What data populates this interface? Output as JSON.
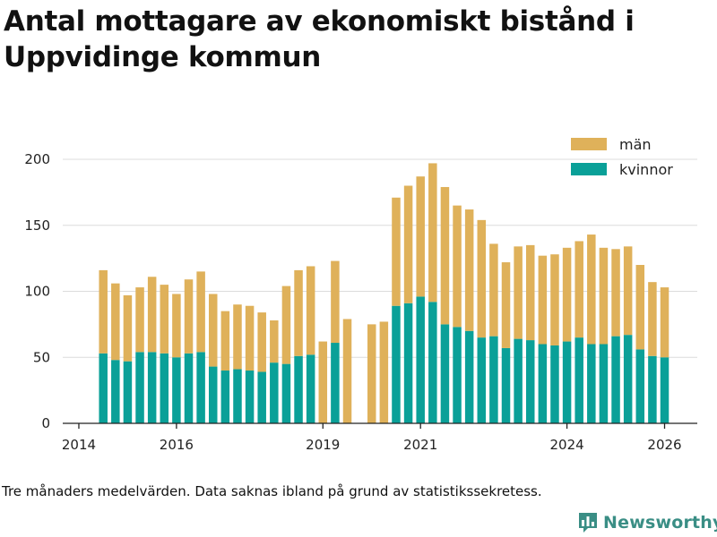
{
  "title": "Antal mottagare av ekonomiskt bistånd i Uppvidinge kommun",
  "note": "Tre månaders medelvärden. Data saknas ibland på grund av statistikssekretess.",
  "brand": "Newsworthy",
  "colors": {
    "man": "#dfb15a",
    "kvinnor": "#0aa098",
    "grid": "#dcdcdc",
    "axis": "#222222",
    "brand": "#3a8e85"
  },
  "chart_data": {
    "type": "bar",
    "stacked": true,
    "title": "Antal mottagare av ekonomiskt bistånd i Uppvidinge kommun",
    "xlabel": "",
    "ylabel": "",
    "ylim": [
      0,
      220
    ],
    "yticks": [
      0,
      50,
      100,
      150,
      200
    ],
    "xlim": [
      2013.67,
      2026.67
    ],
    "xticks": [
      2014,
      2016,
      2019,
      2021,
      2024,
      2026
    ],
    "x": [
      2014.5,
      2014.75,
      2015.0,
      2015.25,
      2015.5,
      2015.75,
      2016.0,
      2016.25,
      2016.5,
      2016.75,
      2017.0,
      2017.25,
      2017.5,
      2017.75,
      2018.0,
      2018.25,
      2018.5,
      2018.75,
      2019.0,
      2019.25,
      2019.5,
      2019.75,
      2020.0,
      2020.25,
      2020.5,
      2020.75,
      2021.0,
      2021.25,
      2021.5,
      2021.75,
      2022.0,
      2022.25,
      2022.5,
      2022.75,
      2023.0,
      2023.25,
      2023.5,
      2023.75,
      2024.0,
      2024.25,
      2024.5,
      2024.75,
      2025.0,
      2025.25,
      2025.5,
      2025.75,
      2026.0
    ],
    "series": [
      {
        "name": "kvinnor",
        "values": [
          53,
          48,
          47,
          54,
          54,
          53,
          50,
          53,
          54,
          43,
          40,
          41,
          40,
          39,
          46,
          45,
          51,
          52,
          0,
          61,
          null,
          0,
          0,
          0,
          89,
          91,
          96,
          92,
          75,
          73,
          70,
          65,
          66,
          57,
          64,
          63,
          60,
          59,
          62,
          65,
          60,
          60,
          66,
          67,
          56,
          51,
          50
        ]
      },
      {
        "name": "män",
        "values": [
          63,
          58,
          50,
          49,
          57,
          52,
          48,
          56,
          61,
          55,
          45,
          49,
          49,
          45,
          32,
          59,
          65,
          67,
          62,
          62,
          79,
          null,
          75,
          77,
          82,
          89,
          91,
          105,
          104,
          92,
          92,
          89,
          70,
          65,
          70,
          72,
          67,
          69,
          71,
          73,
          83,
          73,
          66,
          67,
          64,
          56,
          53
        ]
      }
    ],
    "legend": {
      "position": "top-right",
      "entries": [
        "män",
        "kvinnor"
      ]
    },
    "xtick_labels": [
      "2014",
      "2016",
      "2019",
      "2021",
      "2024",
      "2026"
    ],
    "ytick_labels": [
      "0",
      "50",
      "100",
      "150",
      "200"
    ]
  }
}
